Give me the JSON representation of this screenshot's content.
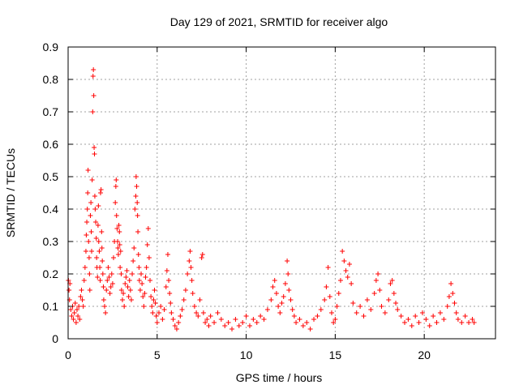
{
  "chart_data": {
    "type": "scatter",
    "title": "Day 129 of 2021, SRMTID for receiver algo",
    "xlabel": "GPS time / hours",
    "ylabel": "SRMTID / TECUs",
    "xlim": [
      0,
      24
    ],
    "ylim": [
      0,
      0.9
    ],
    "x_ticks": [
      {
        "value": 0,
        "label": "0"
      },
      {
        "value": 5,
        "label": "5"
      },
      {
        "value": 10,
        "label": "10"
      },
      {
        "value": 15,
        "label": "15"
      },
      {
        "value": 20,
        "label": "20"
      }
    ],
    "y_ticks": [
      {
        "value": 0,
        "label": "0"
      },
      {
        "value": 0.1,
        "label": "0.1"
      },
      {
        "value": 0.2,
        "label": "0.2"
      },
      {
        "value": 0.3,
        "label": "0.3"
      },
      {
        "value": 0.4,
        "label": "0.4"
      },
      {
        "value": 0.5,
        "label": "0.5"
      },
      {
        "value": 0.6,
        "label": "0.6"
      },
      {
        "value": 0.7,
        "label": "0.7"
      },
      {
        "value": 0.8,
        "label": "0.8"
      },
      {
        "value": 0.9,
        "label": "0.9"
      }
    ],
    "grid": true,
    "marker": "+",
    "color": "#ff0000",
    "series": [
      {
        "name": "SRMTID",
        "points": [
          [
            0.02,
            0.18
          ],
          [
            0.05,
            0.15
          ],
          [
            0.08,
            0.12
          ],
          [
            0.1,
            0.17
          ],
          [
            0.15,
            0.09
          ],
          [
            0.2,
            0.07
          ],
          [
            0.25,
            0.1
          ],
          [
            0.3,
            0.06
          ],
          [
            0.35,
            0.08
          ],
          [
            0.4,
            0.11
          ],
          [
            0.45,
            0.05
          ],
          [
            0.5,
            0.09
          ],
          [
            0.55,
            0.07
          ],
          [
            0.6,
            0.1
          ],
          [
            0.65,
            0.06
          ],
          [
            0.7,
            0.13
          ],
          [
            0.75,
            0.15
          ],
          [
            0.8,
            0.12
          ],
          [
            0.85,
            0.1
          ],
          [
            0.9,
            0.18
          ],
          [
            0.95,
            0.22
          ],
          [
            1.0,
            0.27
          ],
          [
            1.02,
            0.32
          ],
          [
            1.05,
            0.36
          ],
          [
            1.08,
            0.4
          ],
          [
            1.1,
            0.45
          ],
          [
            1.12,
            0.52
          ],
          [
            1.15,
            0.3
          ],
          [
            1.18,
            0.25
          ],
          [
            1.2,
            0.2
          ],
          [
            1.22,
            0.15
          ],
          [
            1.25,
            0.38
          ],
          [
            1.28,
            0.42
          ],
          [
            1.3,
            0.33
          ],
          [
            1.32,
            0.27
          ],
          [
            1.35,
            0.49
          ],
          [
            1.38,
            0.7
          ],
          [
            1.4,
            0.81
          ],
          [
            1.42,
            0.83
          ],
          [
            1.44,
            0.75
          ],
          [
            1.46,
            0.59
          ],
          [
            1.48,
            0.57
          ],
          [
            1.5,
            0.44
          ],
          [
            1.52,
            0.4
          ],
          [
            1.55,
            0.36
          ],
          [
            1.58,
            0.31
          ],
          [
            1.6,
            0.25
          ],
          [
            1.62,
            0.22
          ],
          [
            1.65,
            0.19
          ],
          [
            1.68,
            0.35
          ],
          [
            1.7,
            0.41
          ],
          [
            1.72,
            0.3
          ],
          [
            1.75,
            0.27
          ],
          [
            1.78,
            0.22
          ],
          [
            1.8,
            0.18
          ],
          [
            1.82,
            0.45
          ],
          [
            1.85,
            0.46
          ],
          [
            1.88,
            0.33
          ],
          [
            1.9,
            0.28
          ],
          [
            1.92,
            0.24
          ],
          [
            1.95,
            0.2
          ],
          [
            1.98,
            0.16
          ],
          [
            2.0,
            0.12
          ],
          [
            2.05,
            0.1
          ],
          [
            2.1,
            0.08
          ],
          [
            2.15,
            0.15
          ],
          [
            2.2,
            0.18
          ],
          [
            2.25,
            0.22
          ],
          [
            2.3,
            0.19
          ],
          [
            2.35,
            0.14
          ],
          [
            2.4,
            0.16
          ],
          [
            2.45,
            0.2
          ],
          [
            2.5,
            0.17
          ],
          [
            2.55,
            0.25
          ],
          [
            2.6,
            0.3
          ],
          [
            2.65,
            0.42
          ],
          [
            2.68,
            0.47
          ],
          [
            2.7,
            0.49
          ],
          [
            2.72,
            0.38
          ],
          [
            2.75,
            0.34
          ],
          [
            2.78,
            0.3
          ],
          [
            2.8,
            0.28
          ],
          [
            2.82,
            0.26
          ],
          [
            2.85,
            0.35
          ],
          [
            2.88,
            0.33
          ],
          [
            2.9,
            0.29
          ],
          [
            2.92,
            0.22
          ],
          [
            2.95,
            0.27
          ],
          [
            2.98,
            0.2
          ],
          [
            3.0,
            0.15
          ],
          [
            3.05,
            0.12
          ],
          [
            3.1,
            0.14
          ],
          [
            3.15,
            0.1
          ],
          [
            3.2,
            0.17
          ],
          [
            3.25,
            0.19
          ],
          [
            3.3,
            0.21
          ],
          [
            3.35,
            0.16
          ],
          [
            3.4,
            0.13
          ],
          [
            3.45,
            0.18
          ],
          [
            3.5,
            0.15
          ],
          [
            3.55,
            0.12
          ],
          [
            3.6,
            0.2
          ],
          [
            3.65,
            0.24
          ],
          [
            3.7,
            0.28
          ],
          [
            3.75,
            0.4
          ],
          [
            3.8,
            0.44
          ],
          [
            3.82,
            0.5
          ],
          [
            3.85,
            0.47
          ],
          [
            3.88,
            0.42
          ],
          [
            3.9,
            0.38
          ],
          [
            3.92,
            0.33
          ],
          [
            3.95,
            0.26
          ],
          [
            3.98,
            0.22
          ],
          [
            4.0,
            0.18
          ],
          [
            4.05,
            0.15
          ],
          [
            4.1,
            0.2
          ],
          [
            4.15,
            0.17
          ],
          [
            4.2,
            0.13
          ],
          [
            4.25,
            0.1
          ],
          [
            4.3,
            0.14
          ],
          [
            4.35,
            0.19
          ],
          [
            4.4,
            0.22
          ],
          [
            4.45,
            0.29
          ],
          [
            4.5,
            0.34
          ],
          [
            4.55,
            0.25
          ],
          [
            4.6,
            0.18
          ],
          [
            4.65,
            0.13
          ],
          [
            4.7,
            0.1
          ],
          [
            4.75,
            0.08
          ],
          [
            4.8,
            0.12
          ],
          [
            4.85,
            0.15
          ],
          [
            4.9,
            0.11
          ],
          [
            4.95,
            0.07
          ],
          [
            5.0,
            0.05
          ],
          [
            5.1,
            0.08
          ],
          [
            5.2,
            0.1
          ],
          [
            5.3,
            0.06
          ],
          [
            5.4,
            0.09
          ],
          [
            5.5,
            0.16
          ],
          [
            5.55,
            0.21
          ],
          [
            5.6,
            0.26
          ],
          [
            5.65,
            0.18
          ],
          [
            5.7,
            0.14
          ],
          [
            5.75,
            0.11
          ],
          [
            5.8,
            0.08
          ],
          [
            5.9,
            0.06
          ],
          [
            6.0,
            0.04
          ],
          [
            6.1,
            0.03
          ],
          [
            6.2,
            0.05
          ],
          [
            6.3,
            0.07
          ],
          [
            6.4,
            0.09
          ],
          [
            6.5,
            0.12
          ],
          [
            6.6,
            0.15
          ],
          [
            6.7,
            0.2
          ],
          [
            6.8,
            0.24
          ],
          [
            6.85,
            0.27
          ],
          [
            6.9,
            0.22
          ],
          [
            6.95,
            0.18
          ],
          [
            7.0,
            0.14
          ],
          [
            7.1,
            0.1
          ],
          [
            7.2,
            0.08
          ],
          [
            7.3,
            0.07
          ],
          [
            7.4,
            0.12
          ],
          [
            7.5,
            0.25
          ],
          [
            7.55,
            0.26
          ],
          [
            7.6,
            0.08
          ],
          [
            7.7,
            0.05
          ],
          [
            7.8,
            0.06
          ],
          [
            7.9,
            0.04
          ],
          [
            8.0,
            0.07
          ],
          [
            8.2,
            0.05
          ],
          [
            8.4,
            0.08
          ],
          [
            8.6,
            0.06
          ],
          [
            8.8,
            0.04
          ],
          [
            9.0,
            0.05
          ],
          [
            9.2,
            0.03
          ],
          [
            9.4,
            0.06
          ],
          [
            9.6,
            0.04
          ],
          [
            9.8,
            0.05
          ],
          [
            10.0,
            0.07
          ],
          [
            10.2,
            0.04
          ],
          [
            10.4,
            0.06
          ],
          [
            10.6,
            0.05
          ],
          [
            10.8,
            0.07
          ],
          [
            11.0,
            0.06
          ],
          [
            11.2,
            0.09
          ],
          [
            11.4,
            0.12
          ],
          [
            11.5,
            0.16
          ],
          [
            11.6,
            0.18
          ],
          [
            11.7,
            0.14
          ],
          [
            11.8,
            0.1
          ],
          [
            11.9,
            0.08
          ],
          [
            12.0,
            0.11
          ],
          [
            12.1,
            0.13
          ],
          [
            12.2,
            0.17
          ],
          [
            12.3,
            0.24
          ],
          [
            12.35,
            0.2
          ],
          [
            12.4,
            0.15
          ],
          [
            12.5,
            0.12
          ],
          [
            12.6,
            0.09
          ],
          [
            12.7,
            0.07
          ],
          [
            12.8,
            0.05
          ],
          [
            13.0,
            0.06
          ],
          [
            13.2,
            0.04
          ],
          [
            13.4,
            0.05
          ],
          [
            13.6,
            0.03
          ],
          [
            13.8,
            0.06
          ],
          [
            14.0,
            0.07
          ],
          [
            14.2,
            0.09
          ],
          [
            14.4,
            0.12
          ],
          [
            14.5,
            0.16
          ],
          [
            14.6,
            0.22
          ],
          [
            14.7,
            0.13
          ],
          [
            14.8,
            0.08
          ],
          [
            14.9,
            0.05
          ],
          [
            15.0,
            0.06
          ],
          [
            15.1,
            0.1
          ],
          [
            15.2,
            0.14
          ],
          [
            15.3,
            0.18
          ],
          [
            15.4,
            0.27
          ],
          [
            15.5,
            0.24
          ],
          [
            15.6,
            0.21
          ],
          [
            15.7,
            0.19
          ],
          [
            15.8,
            0.23
          ],
          [
            15.9,
            0.17
          ],
          [
            16.0,
            0.11
          ],
          [
            16.2,
            0.08
          ],
          [
            16.4,
            0.1
          ],
          [
            16.6,
            0.07
          ],
          [
            16.8,
            0.12
          ],
          [
            17.0,
            0.09
          ],
          [
            17.2,
            0.14
          ],
          [
            17.3,
            0.18
          ],
          [
            17.4,
            0.2
          ],
          [
            17.5,
            0.15
          ],
          [
            17.6,
            0.1
          ],
          [
            17.8,
            0.08
          ],
          [
            18.0,
            0.12
          ],
          [
            18.1,
            0.17
          ],
          [
            18.2,
            0.18
          ],
          [
            18.3,
            0.14
          ],
          [
            18.4,
            0.11
          ],
          [
            18.5,
            0.09
          ],
          [
            18.7,
            0.07
          ],
          [
            18.9,
            0.05
          ],
          [
            19.1,
            0.06
          ],
          [
            19.3,
            0.04
          ],
          [
            19.5,
            0.07
          ],
          [
            19.7,
            0.05
          ],
          [
            19.9,
            0.08
          ],
          [
            20.1,
            0.06
          ],
          [
            20.3,
            0.04
          ],
          [
            20.5,
            0.07
          ],
          [
            20.7,
            0.05
          ],
          [
            20.9,
            0.08
          ],
          [
            21.1,
            0.06
          ],
          [
            21.3,
            0.1
          ],
          [
            21.4,
            0.13
          ],
          [
            21.5,
            0.17
          ],
          [
            21.6,
            0.14
          ],
          [
            21.7,
            0.11
          ],
          [
            21.8,
            0.08
          ],
          [
            21.9,
            0.06
          ],
          [
            22.1,
            0.05
          ],
          [
            22.3,
            0.07
          ],
          [
            22.5,
            0.05
          ],
          [
            22.7,
            0.06
          ],
          [
            22.8,
            0.05
          ]
        ]
      }
    ]
  }
}
